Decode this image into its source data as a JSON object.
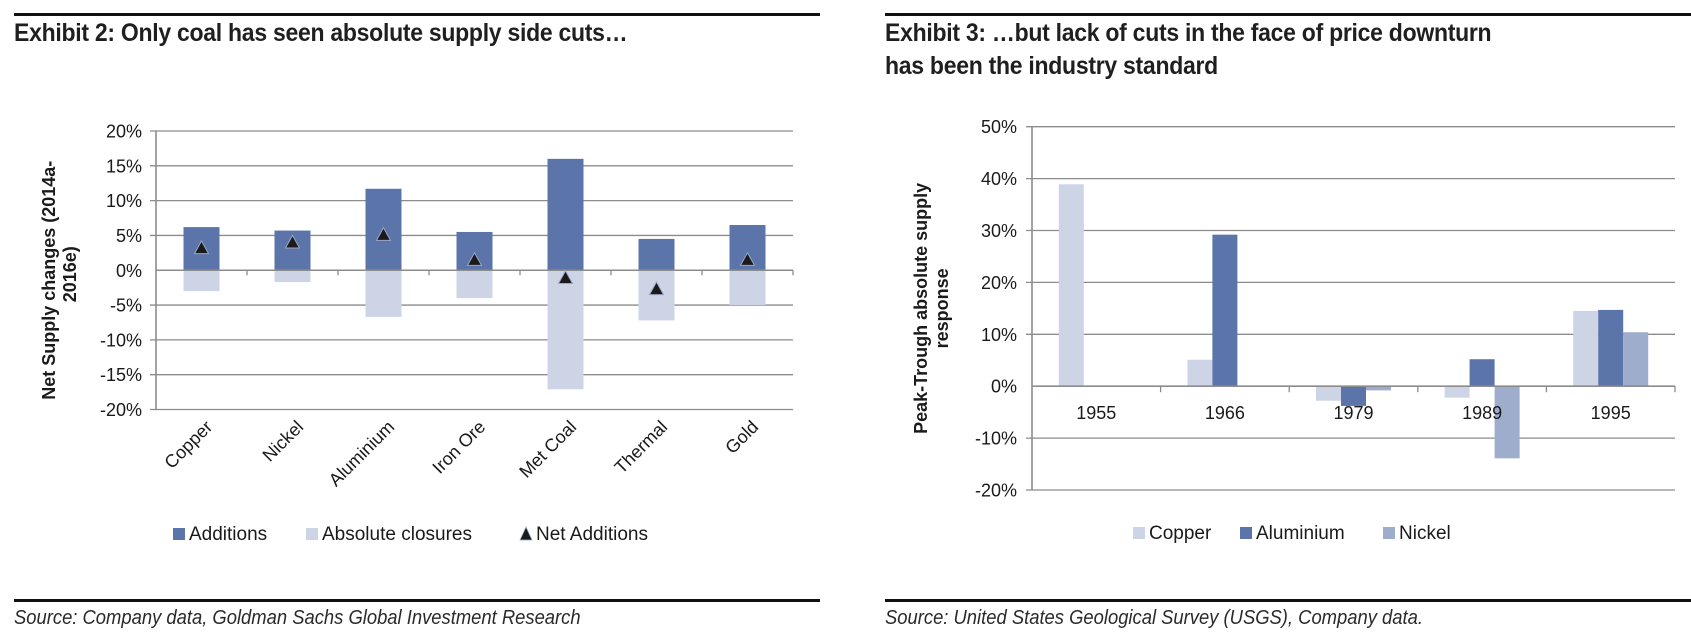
{
  "exhibit2": {
    "title": "Exhibit 2: Only coal has seen absolute supply side cuts…",
    "source": "Source: Company data, Goldman Sachs Global Investment Research"
  },
  "exhibit3": {
    "title_line1": "Exhibit 3: …but lack of cuts in the face of price downturn",
    "title_line2": "has been the industry standard",
    "source": "Source: United States Geological Survey (USGS), Company data."
  },
  "colors": {
    "additions": "#5b75ab",
    "closures": "#cdd4e6",
    "aluminium": "#5b75ab",
    "copper": "#cdd4e6",
    "nickel": "#9eadcc",
    "marker": "#1a1a1a",
    "grid": "#8c8c8c"
  },
  "chart_data": [
    {
      "type": "bar",
      "title": "Exhibit 2: Only coal has seen absolute supply side cuts…",
      "xlabel": "",
      "ylabel": "Net Supply changes (2014a-2016e)",
      "ylabel_lines": [
        "Net Supply changes (2014a-",
        "2016e)"
      ],
      "ylim": [
        -20,
        20
      ],
      "yticks": [
        20,
        15,
        10,
        5,
        0,
        -5,
        -10,
        -15,
        -20
      ],
      "ytick_labels": [
        "20%",
        "15%",
        "10%",
        "5%",
        "0%",
        "-5%",
        "-10%",
        "-15%",
        "-20%"
      ],
      "grid": true,
      "legend_position": "bottom",
      "categories": [
        "Copper",
        "Nickel",
        "Aluminium",
        "Iron Ore",
        "Met Coal",
        "Thermal",
        "Gold"
      ],
      "series": [
        {
          "name": "Additions",
          "kind": "bar",
          "values": [
            6.2,
            5.7,
            11.7,
            5.5,
            16.0,
            4.5,
            6.5
          ]
        },
        {
          "name": "Absolute closures",
          "kind": "bar",
          "values": [
            -3.0,
            -1.7,
            -6.7,
            -4.0,
            -17.1,
            -7.2,
            -5.0
          ]
        },
        {
          "name": "Net Additions",
          "kind": "marker",
          "values": [
            3.2,
            4.0,
            5.1,
            1.5,
            -1.1,
            -2.7,
            1.5
          ]
        }
      ],
      "legend": [
        "Additions",
        "Absolute closures",
        "Net Additions"
      ]
    },
    {
      "type": "bar",
      "title": "Exhibit 3: …but lack of cuts in the face of price downturn has been the industry standard",
      "xlabel": "",
      "ylabel": "Peak-Trough absolute supply response",
      "ylabel_lines": [
        "Peak-Trough absolute supply",
        "response"
      ],
      "ylim": [
        -20,
        50
      ],
      "yticks": [
        50,
        40,
        30,
        20,
        10,
        0,
        -10,
        -20
      ],
      "ytick_labels": [
        "50%",
        "40%",
        "30%",
        "20%",
        "10%",
        "0%",
        "-10%",
        "-20%"
      ],
      "grid": true,
      "legend_position": "bottom",
      "categories": [
        "1955",
        "1966",
        "1979",
        "1989",
        "1995"
      ],
      "series": [
        {
          "name": "Copper",
          "values": [
            38.9,
            5.1,
            -2.8,
            -2.2,
            14.5
          ]
        },
        {
          "name": "Aluminium",
          "values": [
            0,
            29.2,
            -3.8,
            5.2,
            14.7
          ]
        },
        {
          "name": "Nickel",
          "values": [
            0,
            0,
            -0.8,
            -13.9,
            10.4
          ]
        }
      ],
      "legend": [
        "Copper",
        "Aluminium",
        "Nickel"
      ]
    }
  ]
}
